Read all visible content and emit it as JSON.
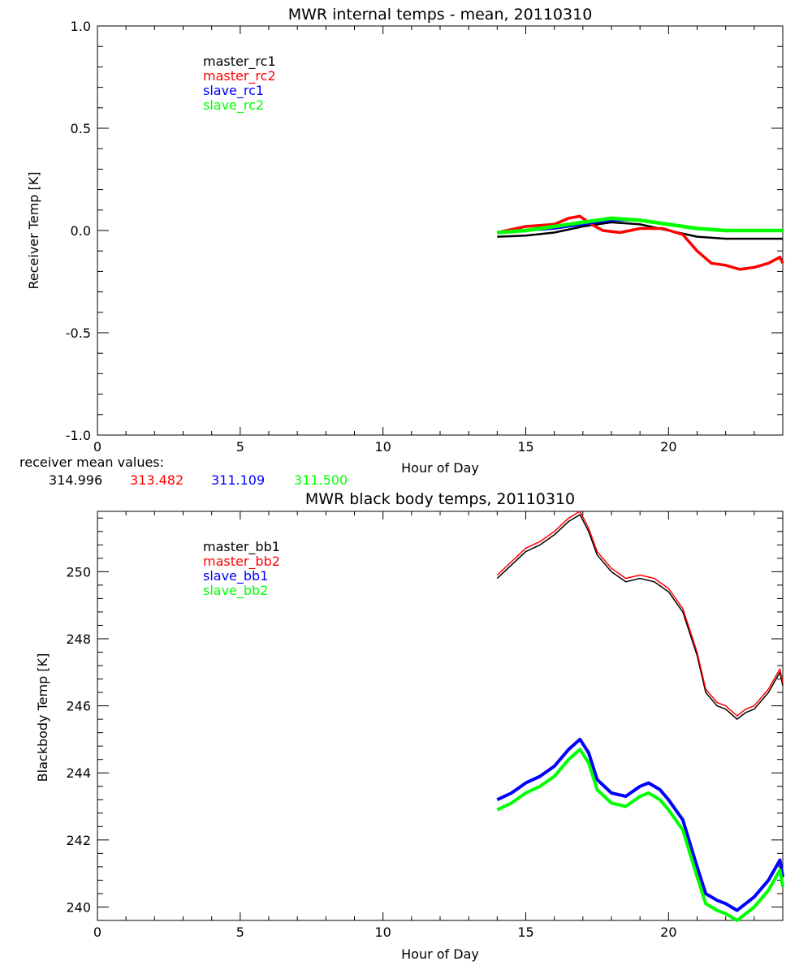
{
  "chart_data": [
    {
      "type": "line",
      "title": "MWR internal temps - mean, 20110310",
      "xlabel": "Hour of Day",
      "ylabel": "Receiver Temp [K]",
      "xlim": [
        0,
        24
      ],
      "ylim": [
        -1.0,
        1.0
      ],
      "xticks": [
        "0",
        "5",
        "10",
        "15",
        "20"
      ],
      "yticks": [
        "1.0",
        "0.5",
        "0.0",
        "-0.5",
        "-1.0"
      ],
      "legend_position": "top-left",
      "series": [
        {
          "name": "master_rc1",
          "color": "#000000",
          "x": [
            14,
            15,
            16,
            17,
            18,
            19,
            20,
            21,
            22,
            23,
            24
          ],
          "values": [
            -0.03,
            -0.025,
            -0.01,
            0.02,
            0.04,
            0.03,
            0.0,
            -0.03,
            -0.04,
            -0.04,
            -0.04
          ]
        },
        {
          "name": "master_rc2",
          "color": "#ff0000",
          "x": [
            14,
            15,
            16,
            16.5,
            16.9,
            17.3,
            17.7,
            18.3,
            19,
            19.8,
            20.5,
            21,
            21.5,
            22,
            22.5,
            23,
            23.5,
            23.9,
            24
          ],
          "values": [
            -0.01,
            0.02,
            0.03,
            0.06,
            0.07,
            0.03,
            0.0,
            -0.01,
            0.01,
            0.01,
            -0.02,
            -0.1,
            -0.16,
            -0.17,
            -0.19,
            -0.18,
            -0.16,
            -0.13,
            -0.16
          ]
        },
        {
          "name": "slave_rc1",
          "color": "#0000ff",
          "x": [
            14,
            15,
            16,
            17,
            18,
            19,
            20,
            21,
            22,
            23,
            24
          ],
          "values": [
            -0.01,
            0.0,
            0.01,
            0.03,
            0.05,
            0.05,
            0.03,
            0.01,
            0.0,
            0.0,
            0.0
          ]
        },
        {
          "name": "slave_rc2",
          "color": "#00ff00",
          "x": [
            14,
            15,
            16,
            17,
            18,
            19,
            20,
            21,
            22,
            23,
            24
          ],
          "values": [
            -0.01,
            0.0,
            0.02,
            0.04,
            0.06,
            0.05,
            0.03,
            0.01,
            0.0,
            0.0,
            0.0
          ]
        }
      ]
    },
    {
      "type": "line",
      "title": "MWR black body temps, 20110310",
      "xlabel": "Hour of Day",
      "ylabel": "Blackbody Temp [K]",
      "xlim": [
        0,
        24
      ],
      "ylim": [
        239.6,
        251.8
      ],
      "xticks": [
        "0",
        "5",
        "10",
        "15",
        "20"
      ],
      "yticks": [
        "250",
        "248",
        "246",
        "244",
        "242",
        "240"
      ],
      "legend_position": "top-left",
      "series": [
        {
          "name": "master_bb1",
          "color": "#000000",
          "x": [
            14,
            14.5,
            15,
            15.5,
            16,
            16.5,
            16.9,
            17.2,
            17.5,
            18,
            18.5,
            19,
            19.5,
            20,
            20.5,
            21,
            21.3,
            21.7,
            22,
            22.4,
            22.7,
            23,
            23.5,
            23.9,
            24
          ],
          "values": [
            249.8,
            250.2,
            250.6,
            250.8,
            251.1,
            251.5,
            251.7,
            251.2,
            250.5,
            250.0,
            249.7,
            249.8,
            249.7,
            249.4,
            248.8,
            247.5,
            246.4,
            246.0,
            245.9,
            245.6,
            245.8,
            245.9,
            246.4,
            247.0,
            246.6
          ]
        },
        {
          "name": "master_bb2",
          "color": "#ff0000",
          "x": [
            14,
            14.5,
            15,
            15.5,
            16,
            16.5,
            16.9,
            17.2,
            17.5,
            18,
            18.5,
            19,
            19.5,
            20,
            20.5,
            21,
            21.3,
            21.7,
            22,
            22.4,
            22.7,
            23,
            23.5,
            23.9,
            24
          ],
          "values": [
            249.9,
            250.3,
            250.7,
            250.9,
            251.2,
            251.6,
            251.8,
            251.3,
            250.6,
            250.1,
            249.8,
            249.9,
            249.8,
            249.5,
            248.9,
            247.6,
            246.5,
            246.1,
            246.0,
            245.7,
            245.9,
            246.0,
            246.5,
            247.1,
            246.7
          ]
        },
        {
          "name": "slave_bb1",
          "color": "#0000ff",
          "x": [
            14,
            14.5,
            15,
            15.5,
            16,
            16.5,
            16.9,
            17.2,
            17.5,
            18,
            18.5,
            19,
            19.3,
            19.7,
            20,
            20.5,
            21,
            21.3,
            21.7,
            22,
            22.4,
            22.7,
            23,
            23.5,
            23.9,
            24
          ],
          "values": [
            243.2,
            243.4,
            243.7,
            243.9,
            244.2,
            244.7,
            245.0,
            244.6,
            243.8,
            243.4,
            243.3,
            243.6,
            243.7,
            243.5,
            243.2,
            242.6,
            241.2,
            240.4,
            240.2,
            240.1,
            239.9,
            240.1,
            240.3,
            240.8,
            241.4,
            240.9
          ]
        },
        {
          "name": "slave_bb2",
          "color": "#00ff00",
          "x": [
            14,
            14.5,
            15,
            15.5,
            16,
            16.5,
            16.9,
            17.2,
            17.5,
            18,
            18.5,
            19,
            19.3,
            19.7,
            20,
            20.5,
            21,
            21.3,
            21.7,
            22,
            22.4,
            22.7,
            23,
            23.5,
            23.9,
            24
          ],
          "values": [
            242.9,
            243.1,
            243.4,
            243.6,
            243.9,
            244.4,
            244.7,
            244.3,
            243.5,
            243.1,
            243.0,
            243.3,
            243.4,
            243.2,
            242.9,
            242.3,
            240.9,
            240.1,
            239.9,
            239.8,
            239.6,
            239.8,
            240.0,
            240.5,
            241.1,
            240.6
          ]
        }
      ]
    }
  ],
  "receiver_mean": {
    "label": "receiver mean values:",
    "values": [
      {
        "text": "314.996",
        "color": "#000000"
      },
      {
        "text": "313.482",
        "color": "#ff0000"
      },
      {
        "text": "311.109",
        "color": "#0000ff"
      },
      {
        "text": "311.500",
        "color": "#00ff00"
      }
    ]
  }
}
